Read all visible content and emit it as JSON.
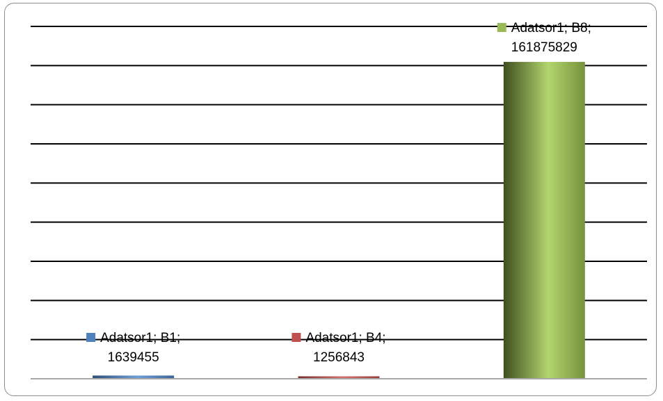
{
  "chart_data": {
    "type": "bar",
    "categories": [
      "B1",
      "B4",
      "B8"
    ],
    "series": [
      {
        "name": "Adatsor1",
        "values": [
          1639455,
          1256843,
          161875829
        ]
      }
    ],
    "bar_colors": [
      "#4f81bd",
      "#c0504d",
      "#9bbb59"
    ],
    "ylim": [
      0,
      180000000
    ],
    "grid": true,
    "data_labels": [
      {
        "line1": "Adatsor1; B1;",
        "line2": "1639455"
      },
      {
        "line1": "Adatsor1; B4;",
        "line2": "1256843"
      },
      {
        "line1": "Adatsor1; B8;",
        "line2": "161875829"
      }
    ]
  }
}
